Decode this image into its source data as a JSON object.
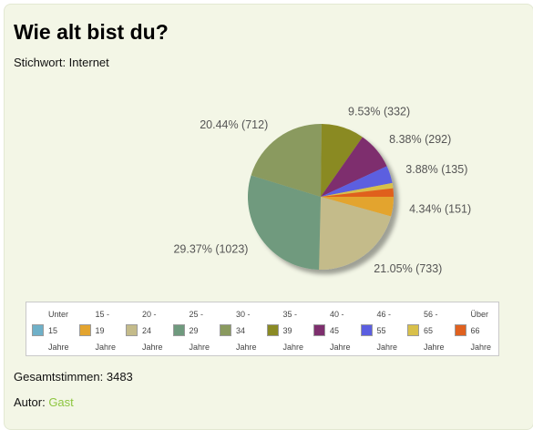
{
  "title": "Wie alt bist du?",
  "keyword": "Stichwort: Internet",
  "total_label": "Gesamtstimmen: 3483",
  "author_label": "Autor:",
  "author_name": "Gast",
  "chart_data": {
    "type": "pie",
    "title": "",
    "slices": [
      {
        "value": 151,
        "percent": "4.34%",
        "color": "#e3a42f",
        "legend": [
          "15 -",
          "19",
          "Jahre"
        ]
      },
      {
        "value": 733,
        "percent": "21.05%",
        "color": "#c4bb8a",
        "legend": [
          "20 -",
          "24",
          "Jahre"
        ]
      },
      {
        "value": 1023,
        "percent": "29.37%",
        "color": "#6f9a7e",
        "legend": [
          "25 -",
          "29",
          "Jahre"
        ]
      },
      {
        "value": 712,
        "percent": "20.44%",
        "color": "#8a9a5f",
        "legend": [
          "30 -",
          "34",
          "Jahre"
        ]
      },
      {
        "value": 332,
        "percent": "9.53%",
        "color": "#8a8a24",
        "legend": [
          "35 -",
          "39",
          "Jahre"
        ]
      },
      {
        "value": 292,
        "percent": "8.38%",
        "color": "#7e2f6e",
        "legend": [
          "40 -",
          "45",
          "Jahre"
        ]
      },
      {
        "value": 135,
        "percent": "3.88%",
        "color": "#5b5ee0",
        "legend": [
          "46 -",
          "55",
          "Jahre"
        ]
      },
      {
        "value": 40,
        "percent": "",
        "color": "#d8c04a",
        "legend": [
          "56 -",
          "65",
          "Jahre"
        ]
      },
      {
        "value": 65,
        "percent": "",
        "color": "#e0611f",
        "legend": [
          "Über",
          "66",
          "Jahre"
        ]
      }
    ],
    "legend_first": {
      "color": "#6fb0c8",
      "legend": [
        "Unter",
        "15",
        "Jahre"
      ]
    },
    "legend_placement": "bottom"
  }
}
